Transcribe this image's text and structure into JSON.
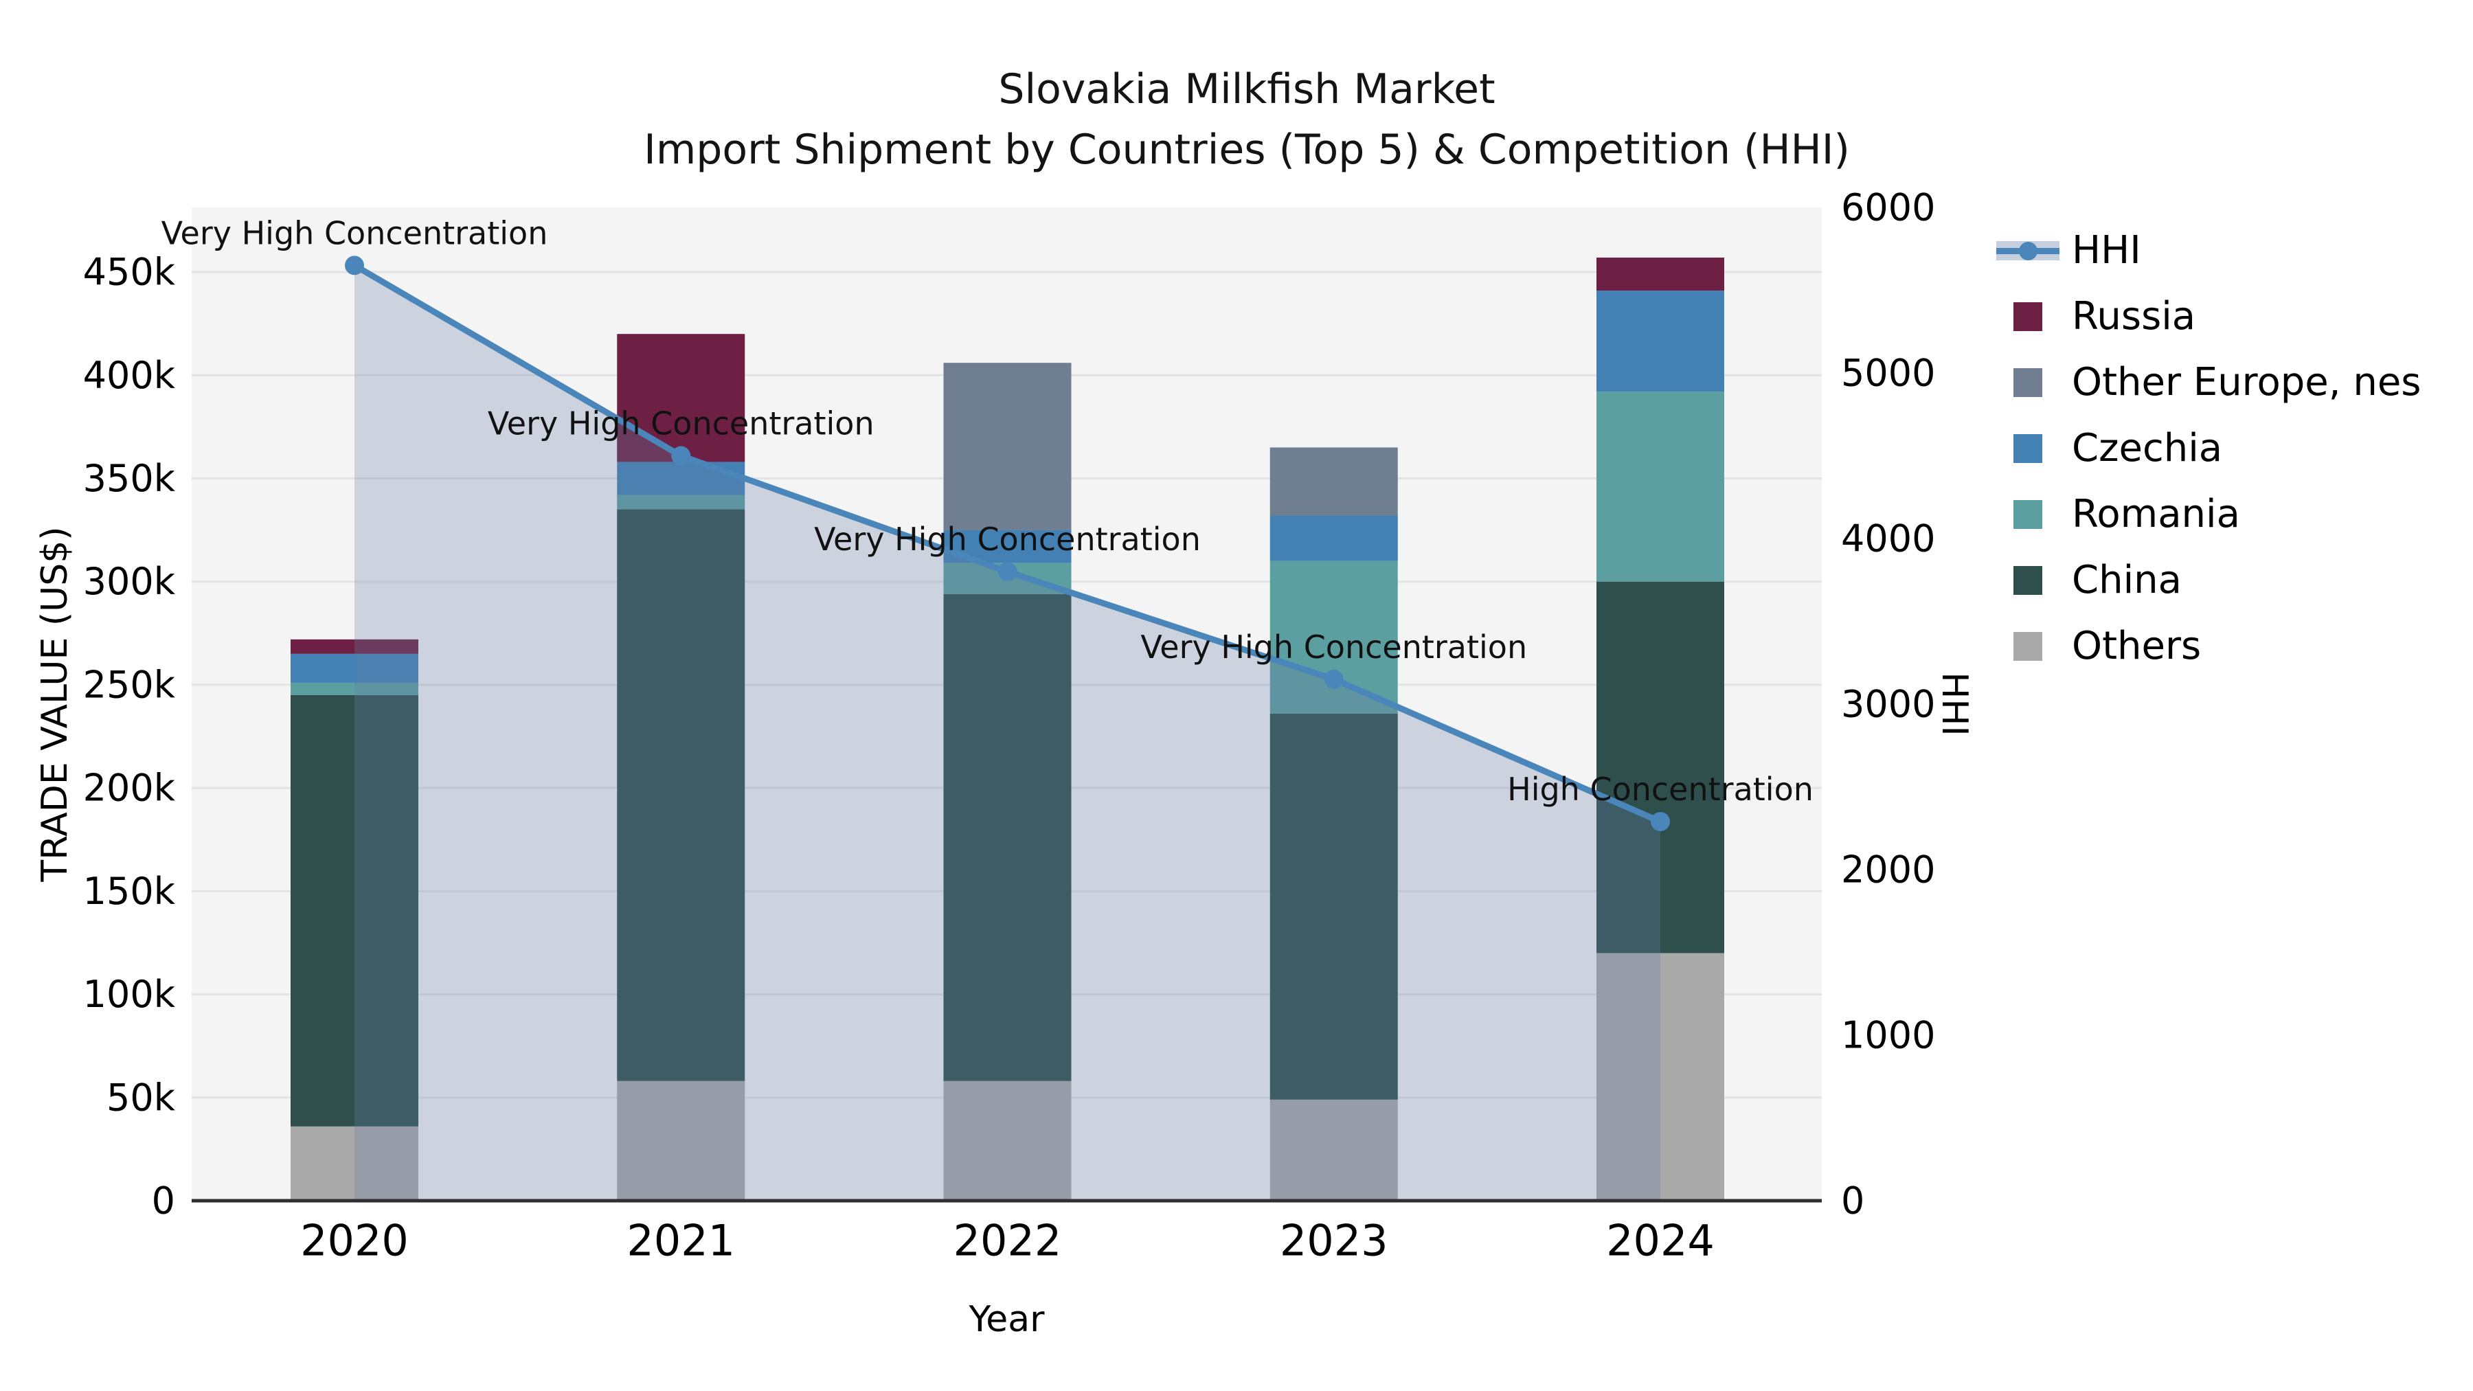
{
  "title": {
    "line1": "Slovakia Milkfish Market",
    "line2": "Import Shipment by Countries (Top 5) & Competition (HHI)"
  },
  "axes": {
    "y_left": {
      "title": "TRADE VALUE (US$)",
      "tick_labels": [
        "0",
        "50k",
        "100k",
        "150k",
        "200k",
        "250k",
        "300k",
        "350k",
        "400k",
        "450k"
      ],
      "tick_values_usd": [
        0,
        50000,
        100000,
        150000,
        200000,
        250000,
        300000,
        350000,
        400000,
        450000
      ]
    },
    "y_right": {
      "title": "HHI",
      "tick_labels": [
        "0",
        "1000",
        "2000",
        "3000",
        "4000",
        "5000",
        "6000"
      ],
      "tick_values": [
        0,
        1000,
        2000,
        3000,
        4000,
        5000,
        6000
      ]
    },
    "x": {
      "title": "Year",
      "tick_labels": [
        "2020",
        "2021",
        "2022",
        "2023",
        "2024"
      ]
    }
  },
  "legend": [
    {
      "label": "HHI",
      "swatch": "line-marker",
      "color": "#4a86ba",
      "band_color": "#c6cfde"
    },
    {
      "label": "Russia",
      "swatch": "square",
      "color": "#6d2044"
    },
    {
      "label": "Other Europe, nes",
      "swatch": "square",
      "color": "#6f7f91"
    },
    {
      "label": "Czechia",
      "swatch": "square",
      "color": "#4381b5"
    },
    {
      "label": "Romania",
      "swatch": "square",
      "color": "#5c9fa0"
    },
    {
      "label": "China",
      "swatch": "square",
      "color": "#2f4f4d"
    },
    {
      "label": "Others",
      "swatch": "square",
      "color": "#a9a9a9"
    }
  ],
  "chart_data": {
    "type": "bar+line",
    "categories": [
      "2020",
      "2021",
      "2022",
      "2023",
      "2024"
    ],
    "x_label": "Year",
    "y_left_label": "TRADE VALUE (US$)",
    "y_right_label": "HHI",
    "ylim_left_usd": [
      0,
      481300
    ],
    "ylim_right": [
      0,
      6000
    ],
    "grid": "horizontal-50k",
    "legend_position": "right",
    "stack_order_bottom_to_top": [
      "Others",
      "China",
      "Romania",
      "Czechia",
      "Other Europe, nes",
      "Russia"
    ],
    "bar_series": [
      {
        "name": "Others",
        "color": "#a9a9a9",
        "values_usd": [
          36000,
          58000,
          58000,
          49000,
          120000
        ]
      },
      {
        "name": "China",
        "color": "#2f4f4d",
        "values_usd": [
          209000,
          277000,
          236000,
          187000,
          180000
        ]
      },
      {
        "name": "Romania",
        "color": "#5c9fa0",
        "values_usd": [
          6000,
          7000,
          15000,
          74000,
          92000
        ]
      },
      {
        "name": "Czechia",
        "color": "#4381b5",
        "values_usd": [
          14000,
          16000,
          16000,
          22000,
          49000
        ]
      },
      {
        "name": "Other Europe, nes",
        "color": "#6f7f91",
        "values_usd": [
          0,
          0,
          81000,
          33000,
          0
        ]
      },
      {
        "name": "Russia",
        "color": "#6d2044",
        "values_usd": [
          7000,
          62000,
          0,
          0,
          16000
        ]
      }
    ],
    "bar_totals_usd": [
      272000,
      420000,
      406000,
      365000,
      457000
    ],
    "line_series": {
      "name": "HHI",
      "color": "#4a86ba",
      "area_fill": "rgba(100,125,165,0.28)",
      "values": [
        5650,
        4500,
        3800,
        3150,
        2290
      ]
    },
    "annotations": [
      {
        "category": "2020",
        "text": "Very High Concentration"
      },
      {
        "category": "2021",
        "text": "Very High Concentration"
      },
      {
        "category": "2022",
        "text": "Very High Concentration"
      },
      {
        "category": "2023",
        "text": "Very High Concentration"
      },
      {
        "category": "2024",
        "text": "High Concentration"
      }
    ]
  }
}
